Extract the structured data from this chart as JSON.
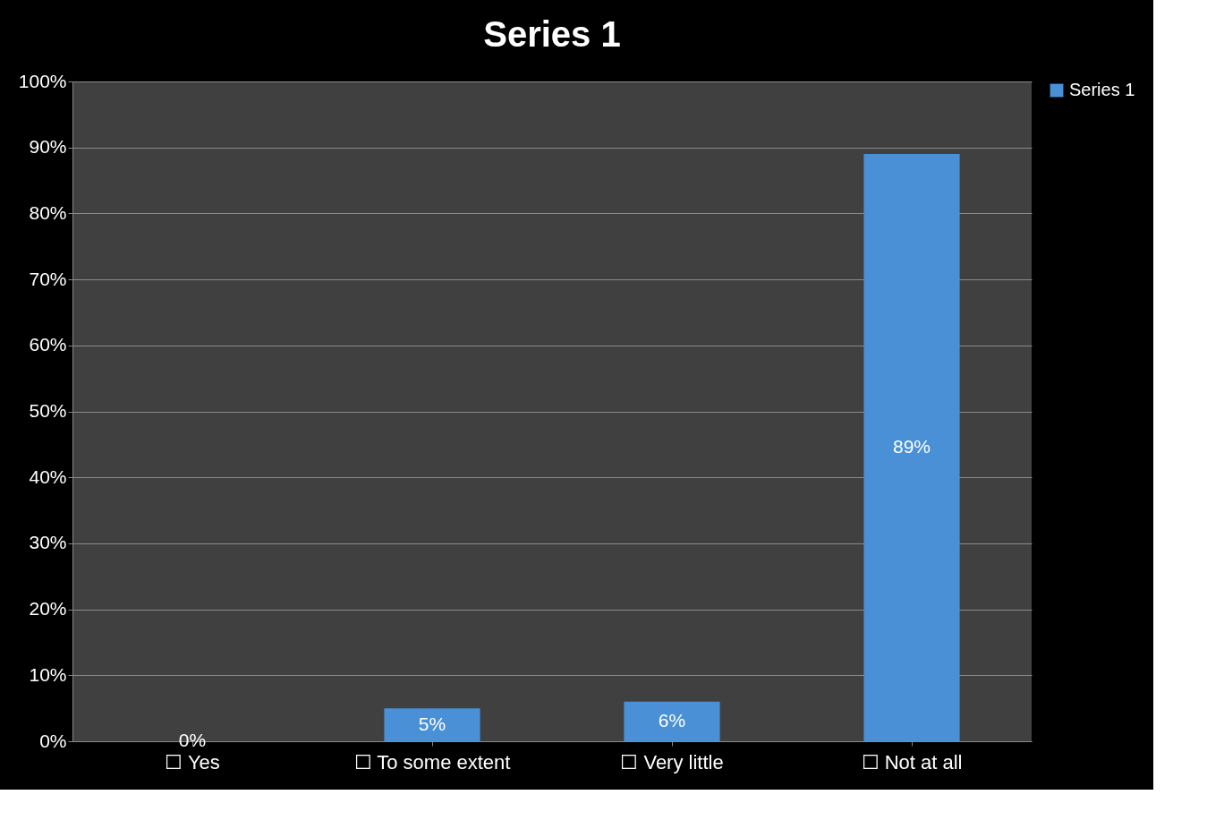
{
  "chart_data": {
    "type": "bar",
    "title": "Series 1",
    "categories": [
      "☐ Yes",
      "☐ To some extent",
      "☐ Very little",
      "☐ Not at all"
    ],
    "series": [
      {
        "name": "Series 1",
        "color": "#4a90d6",
        "values": [
          0,
          5,
          6,
          89
        ],
        "value_labels": [
          "0%",
          "5%",
          "6%",
          "89%"
        ]
      }
    ],
    "ylim": [
      0,
      100
    ],
    "yticks": [
      {
        "value": 0,
        "label": "0%"
      },
      {
        "value": 10,
        "label": "10%"
      },
      {
        "value": 20,
        "label": "20%"
      },
      {
        "value": 30,
        "label": "30%"
      },
      {
        "value": 40,
        "label": "40%"
      },
      {
        "value": 50,
        "label": "50%"
      },
      {
        "value": 60,
        "label": "60%"
      },
      {
        "value": 70,
        "label": "70%"
      },
      {
        "value": 80,
        "label": "80%"
      },
      {
        "value": 90,
        "label": "90%"
      },
      {
        "value": 100,
        "label": "100%"
      }
    ],
    "grid": "y",
    "legend": "right"
  }
}
